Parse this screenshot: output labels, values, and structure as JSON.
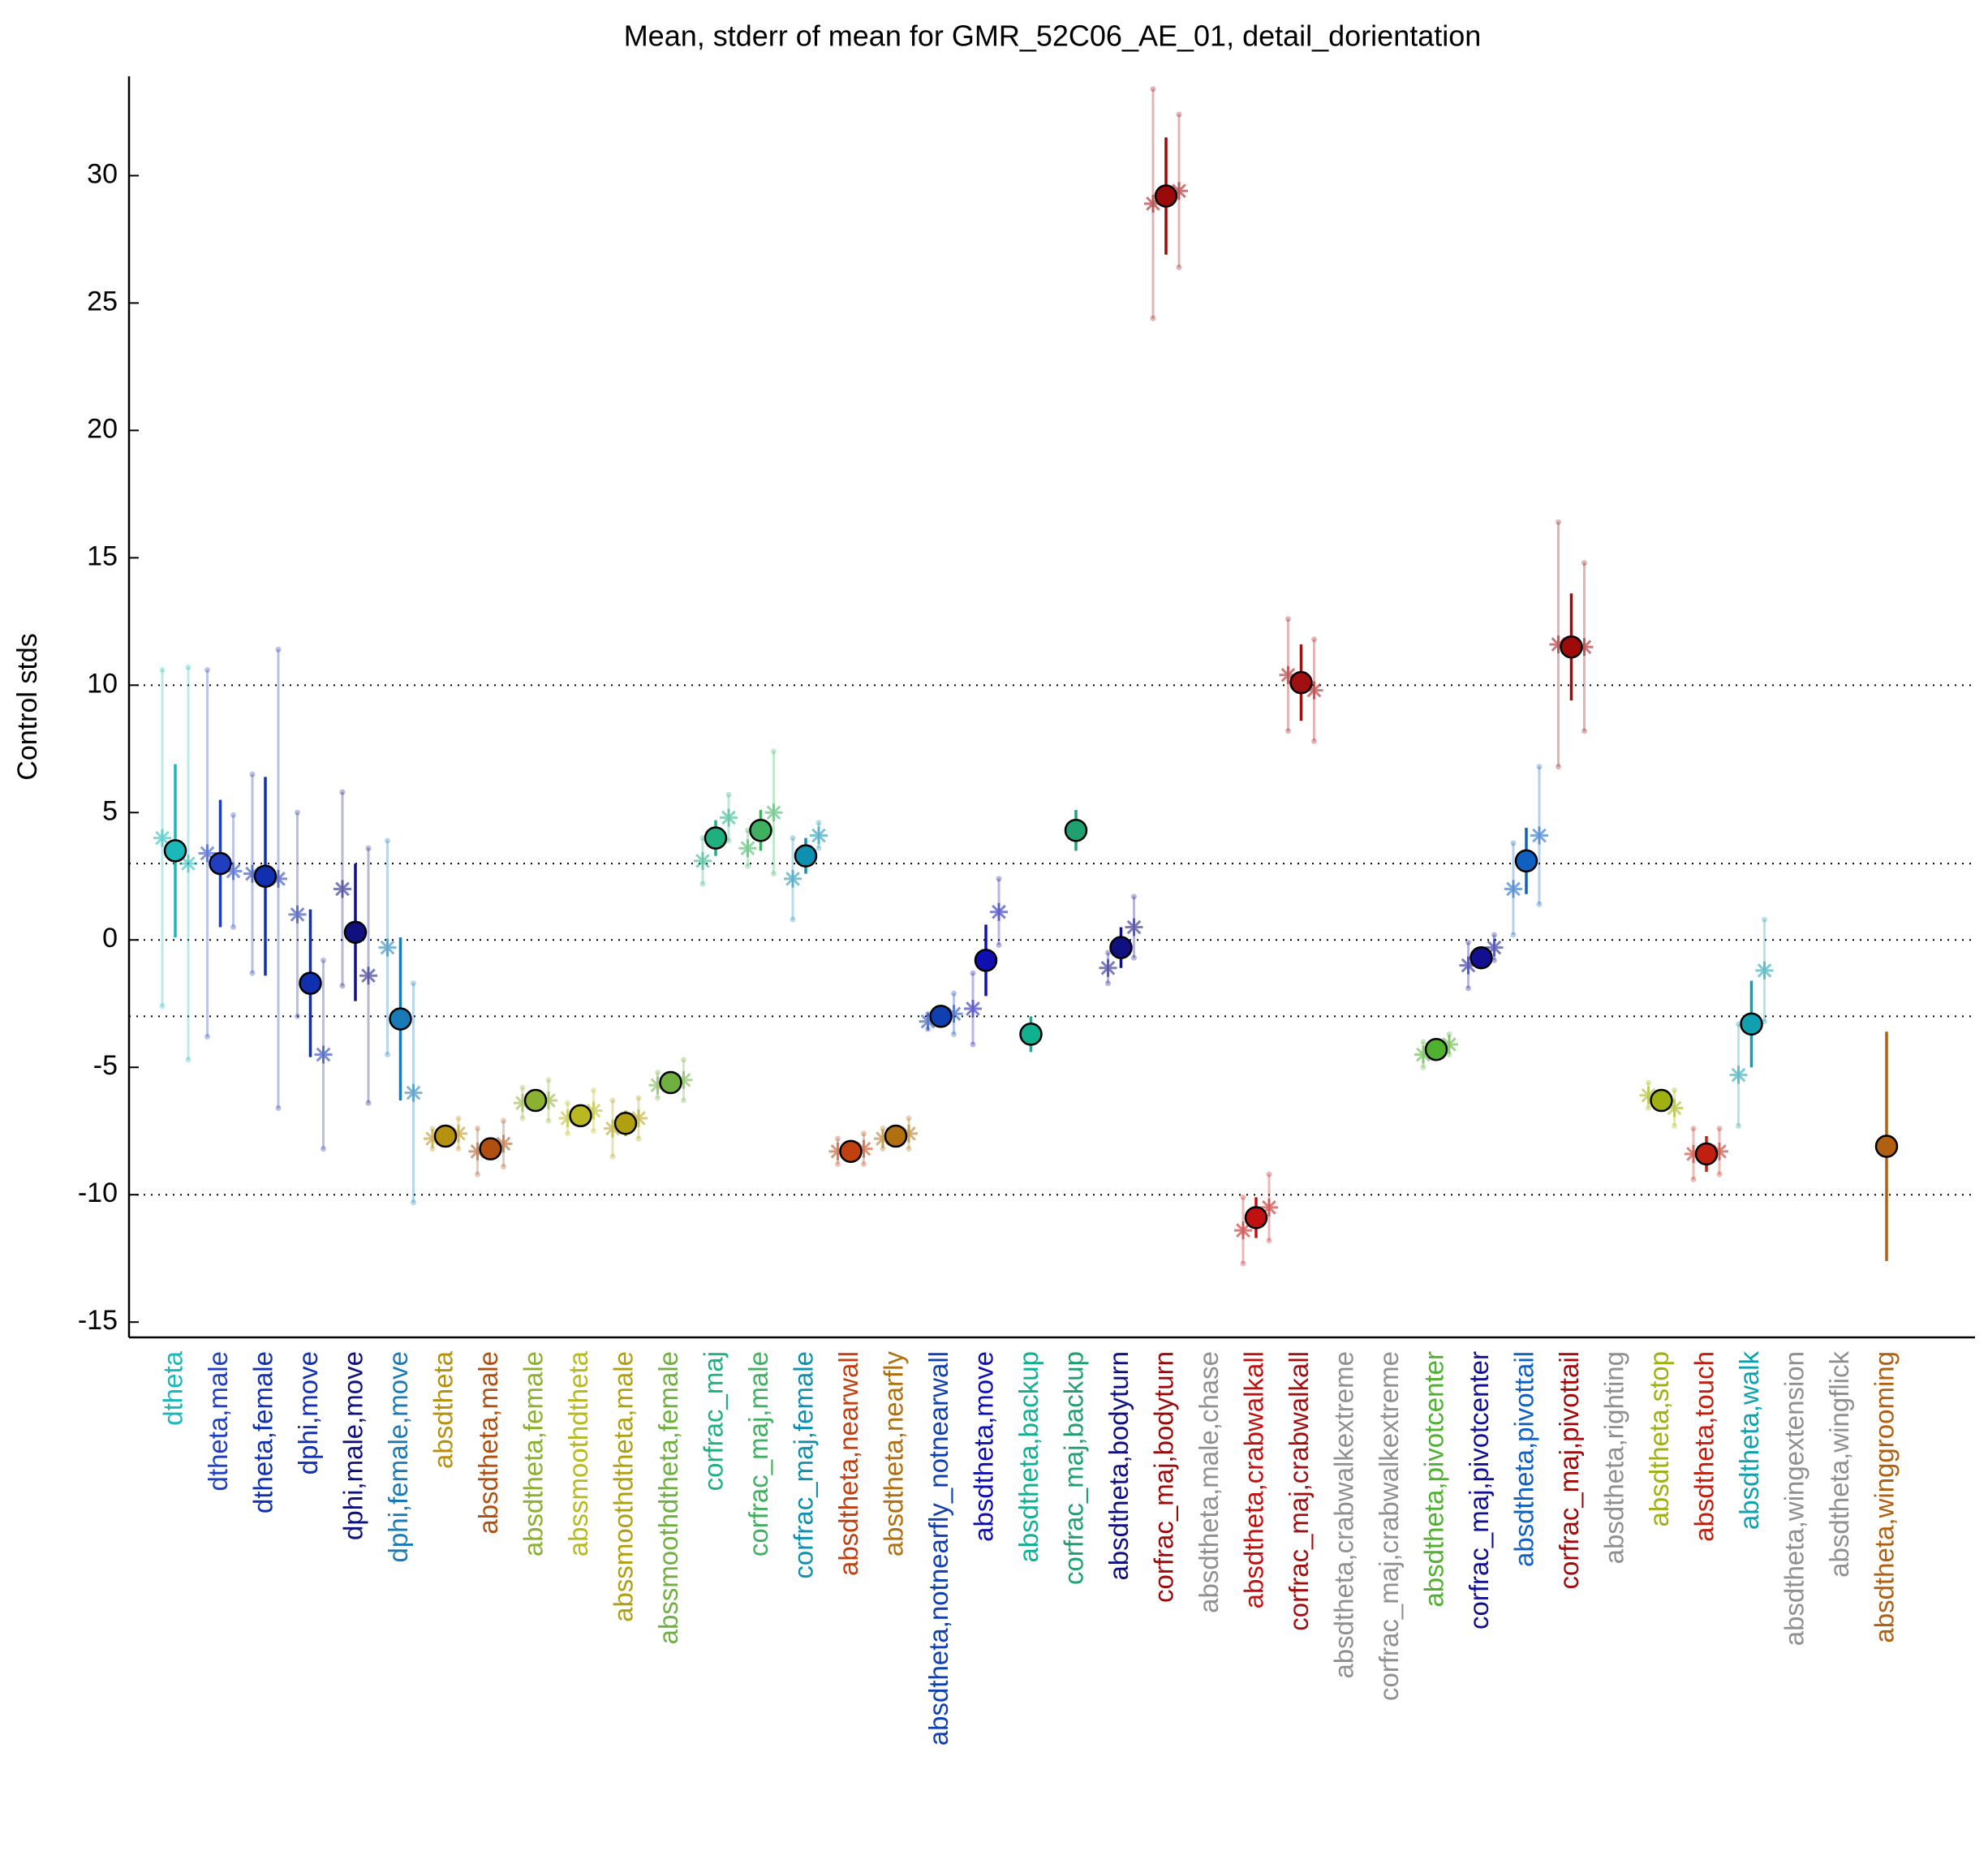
{
  "chart_data": {
    "type": "errorbar",
    "title": "Mean, stderr of mean for GMR_52C06_AE_01, detail_dorientation",
    "ylabel": "Control stds",
    "ylim": [
      -15.6,
      33.9
    ],
    "yticks": [
      -15,
      -10,
      -5,
      0,
      5,
      10,
      15,
      20,
      25,
      30
    ],
    "reference_lines": [
      10,
      3,
      0,
      -3,
      -10
    ],
    "categories": [
      "dtheta",
      "dtheta,male",
      "dtheta,female",
      "dphi,move",
      "dphi,male,move",
      "dphi,female,move",
      "absdtheta",
      "absdtheta,male",
      "absdtheta,female",
      "abssmoothdtheta",
      "abssmoothdtheta,male",
      "abssmoothdtheta,female",
      "corfrac_maj",
      "corfrac_maj,male",
      "corfrac_maj,female",
      "absdtheta,nearwall",
      "absdtheta,nearfly",
      "absdtheta,notnearfly_notnearwall",
      "absdtheta,move",
      "absdtheta,backup",
      "corfrac_maj,backup",
      "absdtheta,bodyturn",
      "corfrac_maj,bodyturn",
      "absdtheta,male,chase",
      "absdtheta,crabwalkall",
      "corfrac_maj,crabwalkall",
      "absdtheta,crabwalkextreme",
      "corfrac_maj,crabwalkextreme",
      "absdtheta,pivotcenter",
      "corfrac_maj,pivotcenter",
      "absdtheta,pivottail",
      "corfrac_maj,pivottail",
      "absdtheta,righting",
      "absdtheta,stop",
      "absdtheta,touch",
      "absdtheta,walk",
      "absdtheta,wingextension",
      "absdtheta,wingflick",
      "absdtheta,winggrooming"
    ],
    "colors": [
      "#1ab8b8",
      "#1f3fbf",
      "#1030b0",
      "#1030b0",
      "#10107f",
      "#1a7ab5",
      "#b8900f",
      "#b05010",
      "#8cb030",
      "#b8b820",
      "#b0a010",
      "#70b040",
      "#20b080",
      "#40b060",
      "#1090b0",
      "#c04010",
      "#b07010",
      "#1040b0",
      "#1010b0",
      "#10b090",
      "#20a070",
      "#101080",
      "#9a0a0a",
      "#909090",
      "#c01010",
      "#a01010",
      "#909090",
      "#909090",
      "#50b030",
      "#101090",
      "#1060c0",
      "#a00a0a",
      "#909090",
      "#a0b010",
      "#c02010",
      "#10a0b0",
      "#909090",
      "#909090",
      "#b06010"
    ],
    "values": [
      3.5,
      3.0,
      2.5,
      -1.7,
      0.3,
      -3.1,
      -7.7,
      -8.2,
      -6.3,
      -6.9,
      -7.2,
      -5.6,
      4.0,
      4.3,
      3.3,
      -8.3,
      -7.7,
      -3.0,
      -0.8,
      -3.7,
      4.3,
      -0.3,
      29.2,
      null,
      -10.9,
      10.1,
      null,
      null,
      -4.3,
      -0.7,
      3.1,
      11.5,
      null,
      -6.3,
      -8.4,
      -3.3,
      null,
      null,
      -8.1
    ],
    "errors": [
      3.4,
      2.5,
      3.9,
      2.9,
      2.7,
      3.2,
      0.3,
      0.4,
      0.3,
      0.3,
      0.5,
      0.3,
      0.7,
      0.8,
      0.7,
      0.2,
      0.3,
      0.2,
      1.4,
      0.7,
      0.8,
      0.8,
      2.3,
      null,
      0.8,
      1.5,
      null,
      null,
      0.3,
      0.3,
      1.3,
      2.1,
      null,
      0.3,
      0.7,
      1.7,
      null,
      null,
      4.5
    ],
    "left_values": [
      4.0,
      3.4,
      2.6,
      1.0,
      2.0,
      -0.3,
      -7.8,
      -8.3,
      -6.4,
      -7.0,
      -7.4,
      -5.7,
      3.1,
      3.6,
      2.4,
      -8.3,
      -7.8,
      -3.2,
      -2.7,
      null,
      null,
      -1.1,
      28.9,
      null,
      -11.4,
      10.4,
      null,
      null,
      -4.5,
      -1.0,
      2.0,
      11.6,
      null,
      -6.1,
      -8.4,
      -5.3,
      null,
      null,
      null
    ],
    "left_errors": [
      6.6,
      7.2,
      3.9,
      4.0,
      3.8,
      4.2,
      0.4,
      0.9,
      0.6,
      0.6,
      1.1,
      0.5,
      0.9,
      0.7,
      1.6,
      0.5,
      0.4,
      0.3,
      1.4,
      null,
      null,
      0.6,
      4.5,
      null,
      1.3,
      2.2,
      null,
      null,
      0.5,
      0.9,
      1.8,
      4.8,
      null,
      0.5,
      1.0,
      2.0,
      null,
      null,
      null
    ],
    "right_values": [
      3.0,
      2.7,
      2.4,
      -4.5,
      -1.4,
      -6.0,
      -7.6,
      -8.0,
      -6.3,
      -6.7,
      -7.0,
      -5.5,
      4.8,
      5.0,
      4.1,
      -8.2,
      -7.6,
      -2.9,
      1.1,
      null,
      null,
      0.5,
      29.4,
      null,
      -10.5,
      9.8,
      null,
      null,
      -4.1,
      -0.3,
      4.1,
      11.5,
      null,
      -6.6,
      -8.3,
      -1.2,
      null,
      null,
      null
    ],
    "right_errors": [
      7.7,
      2.2,
      9.0,
      3.7,
      5.0,
      4.3,
      0.6,
      0.9,
      0.8,
      0.8,
      0.8,
      0.8,
      0.9,
      2.4,
      0.5,
      0.6,
      0.6,
      0.8,
      1.3,
      null,
      null,
      1.2,
      3.0,
      null,
      1.3,
      2.0,
      null,
      null,
      0.4,
      0.5,
      2.7,
      3.3,
      null,
      0.7,
      0.9,
      2.0,
      null,
      null,
      null
    ]
  }
}
